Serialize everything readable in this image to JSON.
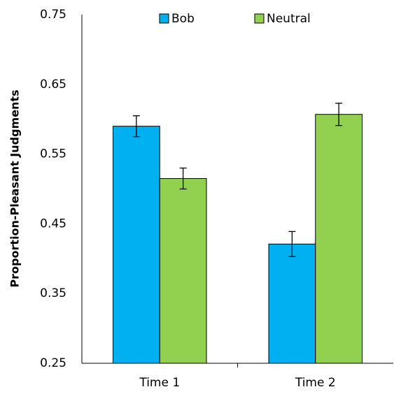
{
  "chart_data": {
    "type": "bar",
    "y_label": "Proportion-Pleasant Judgments",
    "categories": [
      "Time 1",
      "Time 2"
    ],
    "series": [
      {
        "name": "Bob",
        "color": "#00b0f0",
        "values": [
          0.59,
          0.421
        ],
        "errors": [
          0.015,
          0.018
        ]
      },
      {
        "name": "Neutral",
        "color": "#92d050",
        "values": [
          0.515,
          0.607
        ],
        "errors": [
          0.015,
          0.016
        ]
      }
    ],
    "ylim": [
      0.25,
      0.75
    ],
    "yticks": [
      0.25,
      0.35,
      0.45,
      0.55,
      0.65,
      0.75
    ],
    "grid": false,
    "legend": "top"
  }
}
